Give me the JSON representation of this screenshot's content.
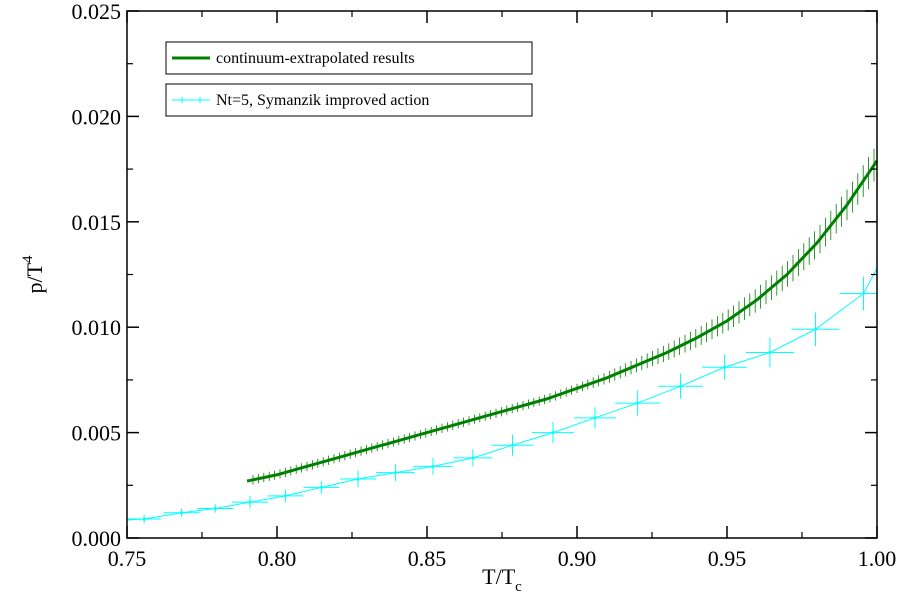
{
  "chart_data": {
    "type": "line",
    "xlabel": "T/T",
    "xlabel_sub": "c",
    "ylabel": "p/T",
    "ylabel_sup": "4",
    "xlim": [
      0.75,
      1.0
    ],
    "ylim": [
      0.0,
      0.025
    ],
    "xticks": [
      "0.75",
      "0.80",
      "0.85",
      "0.90",
      "0.95",
      "1.00"
    ],
    "yticks": [
      "0.000",
      "0.005",
      "0.010",
      "0.015",
      "0.020",
      "0.025"
    ],
    "grid": false,
    "legend_position": "top-left",
    "series": [
      {
        "name": "continuum-extrapolated results",
        "color": "#008000",
        "style": "thick-line-with-error-band",
        "x": [
          0.79,
          0.8,
          0.81,
          0.82,
          0.83,
          0.84,
          0.85,
          0.86,
          0.87,
          0.88,
          0.89,
          0.9,
          0.91,
          0.92,
          0.93,
          0.94,
          0.95,
          0.96,
          0.97,
          0.98,
          0.99,
          1.0
        ],
        "y": [
          0.0027,
          0.003,
          0.0034,
          0.0038,
          0.0042,
          0.0046,
          0.005,
          0.0054,
          0.0058,
          0.0062,
          0.0066,
          0.0071,
          0.0076,
          0.0082,
          0.0088,
          0.0095,
          0.0103,
          0.0113,
          0.0125,
          0.014,
          0.0158,
          0.0179
        ],
        "yerr": 0.0004
      },
      {
        "name": "Nt=5, Symanzik improved action",
        "color": "#00ffff",
        "style": "thin-line-with-errorbars",
        "points": [
          {
            "x": 0.7557,
            "y": 0.0009,
            "xerr": 0.0055,
            "yerr": 0.0002
          },
          {
            "x": 0.7682,
            "y": 0.0012,
            "xerr": 0.006,
            "yerr": 0.0002
          },
          {
            "x": 0.7794,
            "y": 0.0014,
            "xerr": 0.006,
            "yerr": 0.0002
          },
          {
            "x": 0.791,
            "y": 0.0017,
            "xerr": 0.006,
            "yerr": 0.0003
          },
          {
            "x": 0.8028,
            "y": 0.002,
            "xerr": 0.006,
            "yerr": 0.0003
          },
          {
            "x": 0.8148,
            "y": 0.0024,
            "xerr": 0.006,
            "yerr": 0.0003
          },
          {
            "x": 0.827,
            "y": 0.0028,
            "xerr": 0.006,
            "yerr": 0.0004
          },
          {
            "x": 0.8395,
            "y": 0.0031,
            "xerr": 0.0065,
            "yerr": 0.0004
          },
          {
            "x": 0.852,
            "y": 0.0034,
            "xerr": 0.0065,
            "yerr": 0.0004
          },
          {
            "x": 0.8653,
            "y": 0.0038,
            "xerr": 0.0065,
            "yerr": 0.0004
          },
          {
            "x": 0.8785,
            "y": 0.0044,
            "xerr": 0.007,
            "yerr": 0.0005
          },
          {
            "x": 0.892,
            "y": 0.005,
            "xerr": 0.007,
            "yerr": 0.0005
          },
          {
            "x": 0.906,
            "y": 0.0057,
            "xerr": 0.007,
            "yerr": 0.0005
          },
          {
            "x": 0.9202,
            "y": 0.0064,
            "xerr": 0.0075,
            "yerr": 0.0006
          },
          {
            "x": 0.9345,
            "y": 0.0072,
            "xerr": 0.0075,
            "yerr": 0.0006
          },
          {
            "x": 0.9492,
            "y": 0.0081,
            "xerr": 0.0075,
            "yerr": 0.0006
          },
          {
            "x": 0.9643,
            "y": 0.0088,
            "xerr": 0.008,
            "yerr": 0.0007
          },
          {
            "x": 0.9795,
            "y": 0.0099,
            "xerr": 0.008,
            "yerr": 0.0008
          },
          {
            "x": 0.9955,
            "y": 0.0116,
            "xerr": 0.008,
            "yerr": 0.0008
          }
        ],
        "line_end": {
          "x": 1.0,
          "y": 0.0128
        }
      }
    ]
  }
}
